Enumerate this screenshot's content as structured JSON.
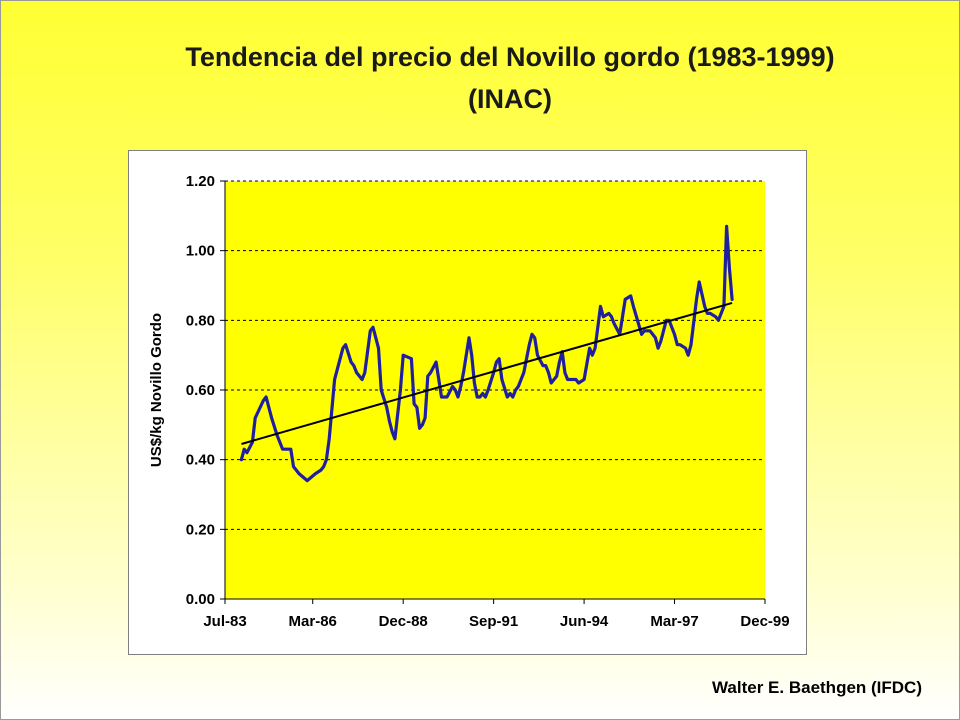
{
  "slide": {
    "title_line1": "Tendencia del precio del Novillo gordo (1983-1999)",
    "title_line2": "(INAC)",
    "footer": "Walter E.  Baethgen (IFDC)"
  },
  "colors": {
    "plot_background": "#ffff00",
    "series": "#1f1fa0",
    "trend": "#000000",
    "grid": "#000000"
  },
  "chart_data": {
    "type": "line",
    "title": "",
    "xlabel": "",
    "ylabel": "US$/kg Novillo Gordo",
    "ylim": [
      0,
      1.2
    ],
    "yticks": [
      "0.00",
      "0.20",
      "0.40",
      "0.60",
      "0.80",
      "1.00",
      "1.20"
    ],
    "xlim": [
      "Jul-83",
      "Dec-99"
    ],
    "xticks": [
      "Jul-83",
      "Mar-86",
      "Dec-88",
      "Sep-91",
      "Jun-94",
      "Mar-97",
      "Dec-99"
    ],
    "grid": "horizontal dashed",
    "legend": "none",
    "series": [
      {
        "x": [
          "Jan-84",
          "Feb-84",
          "Mar-84",
          "May-84",
          "Jun-84",
          "Sep-84",
          "Oct-84",
          "Dec-84",
          "Feb-85",
          "Apr-85",
          "Jul-85",
          "Aug-85",
          "Oct-85",
          "Jan-86",
          "Apr-86",
          "Jun-86",
          "Jul-86",
          "Aug-86",
          "Sep-86",
          "Nov-86",
          "Feb-87",
          "Mar-87",
          "May-87",
          "Jun-87",
          "Jul-87",
          "Sep-87",
          "Oct-87",
          "Dec-87",
          "Jan-88",
          "Feb-88",
          "Mar-88",
          "Apr-88",
          "Jun-88",
          "Jul-88",
          "Aug-88",
          "Sep-88",
          "Nov-88",
          "Dec-88",
          "Mar-89",
          "Apr-89",
          "May-89",
          "Jun-89",
          "Jul-89",
          "Aug-89",
          "Sep-89",
          "Oct-89",
          "Dec-89",
          "Feb-90",
          "Apr-90",
          "Jun-90",
          "Jul-90",
          "Aug-90",
          "Sep-90",
          "Oct-90",
          "Dec-90",
          "Jan-91",
          "Feb-91",
          "Mar-91",
          "Apr-91",
          "May-91",
          "Jun-91",
          "Jul-91",
          "Sep-91",
          "Oct-91",
          "Nov-91",
          "Dec-91",
          "Feb-92",
          "Mar-92",
          "Apr-92",
          "May-92",
          "Jun-92",
          "Aug-92",
          "Oct-92",
          "Nov-92",
          "Dec-92",
          "Jan-93",
          "Mar-93",
          "Apr-93",
          "May-93",
          "Jun-93",
          "Aug-93",
          "Sep-93",
          "Oct-93",
          "Nov-93",
          "Dec-93",
          "Mar-94",
          "Apr-94",
          "Jun-94",
          "Aug-94",
          "Sep-94",
          "Oct-94",
          "Dec-94",
          "Jan-95",
          "Mar-95",
          "Apr-95",
          "May-95",
          "Jul-95",
          "Aug-95",
          "Sep-95",
          "Nov-95",
          "Dec-95",
          "Mar-96",
          "Apr-96",
          "May-96",
          "Jun-96",
          "Aug-96",
          "Sep-96",
          "Oct-96",
          "Dec-96",
          "Jan-97",
          "Mar-97",
          "Apr-97",
          "May-97",
          "Jul-97",
          "Aug-97",
          "Sep-97",
          "Nov-97",
          "Dec-97",
          "Feb-98",
          "Mar-98",
          "Apr-98",
          "Jun-98",
          "Jul-98",
          "Aug-98",
          "Sep-98",
          "Oct-98"
        ],
        "values": [
          0.4,
          0.43,
          0.42,
          0.45,
          0.52,
          0.57,
          0.58,
          0.52,
          0.47,
          0.43,
          0.43,
          0.38,
          0.36,
          0.34,
          0.36,
          0.37,
          0.38,
          0.4,
          0.46,
          0.63,
          0.72,
          0.73,
          0.68,
          0.67,
          0.65,
          0.63,
          0.65,
          0.77,
          0.78,
          0.75,
          0.72,
          0.6,
          0.55,
          0.51,
          0.48,
          0.46,
          0.6,
          0.7,
          0.69,
          0.56,
          0.55,
          0.49,
          0.5,
          0.52,
          0.64,
          0.65,
          0.68,
          0.58,
          0.58,
          0.61,
          0.6,
          0.58,
          0.61,
          0.65,
          0.75,
          0.7,
          0.62,
          0.58,
          0.58,
          0.59,
          0.58,
          0.6,
          0.65,
          0.68,
          0.69,
          0.63,
          0.58,
          0.59,
          0.58,
          0.6,
          0.61,
          0.65,
          0.73,
          0.76,
          0.75,
          0.7,
          0.67,
          0.67,
          0.65,
          0.62,
          0.64,
          0.68,
          0.71,
          0.65,
          0.63,
          0.63,
          0.62,
          0.63,
          0.72,
          0.7,
          0.72,
          0.84,
          0.81,
          0.82,
          0.81,
          0.79,
          0.76,
          0.81,
          0.86,
          0.87,
          0.84,
          0.76,
          0.77,
          0.77,
          0.77,
          0.75,
          0.72,
          0.74,
          0.8,
          0.8,
          0.76,
          0.73,
          0.73,
          0.72,
          0.7,
          0.73,
          0.86,
          0.91,
          0.84,
          0.82,
          0.82,
          0.81,
          0.8,
          0.82,
          0.84,
          1.07
        ]
      }
    ],
    "series_tail": {
      "x": [
        "Nov-98",
        "Dec-98"
      ],
      "values": [
        0.95,
        0.86
      ]
    },
    "trendline": {
      "x": [
        "Jan-84",
        "Dec-98"
      ],
      "values": [
        0.445,
        0.85
      ]
    }
  }
}
